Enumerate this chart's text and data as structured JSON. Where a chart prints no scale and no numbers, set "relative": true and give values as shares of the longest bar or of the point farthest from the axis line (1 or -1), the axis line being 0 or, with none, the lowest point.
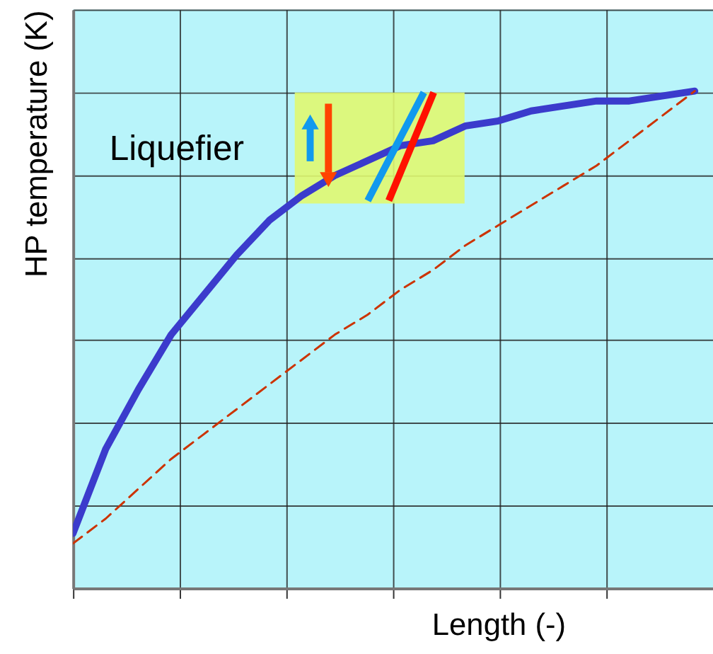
{
  "chart_data": {
    "type": "line",
    "relative": true,
    "xlabel": "Length (-)",
    "ylabel": "HP temperature (K)",
    "categories": [
      null,
      null,
      null,
      null,
      null,
      null,
      null,
      null,
      null,
      null,
      null,
      null,
      null,
      null,
      null,
      null,
      null,
      null,
      null,
      null
    ],
    "series": [
      {
        "color": "#3b3bcc",
        "line_style": "solid",
        "values": [
          0.11,
          0.28,
          0.4,
          0.51,
          0.59,
          0.67,
          0.74,
          0.79,
          0.83,
          0.86,
          0.89,
          0.9,
          0.93,
          0.94,
          0.96,
          0.97,
          0.98,
          0.98,
          0.99,
          1.0
        ]
      },
      {
        "color": "#cc3300",
        "line_style": "dashed",
        "values": [
          0.09,
          0.14,
          0.2,
          0.26,
          0.31,
          0.36,
          0.41,
          0.46,
          0.51,
          0.55,
          0.6,
          0.64,
          0.69,
          0.73,
          0.77,
          0.81,
          0.85,
          0.9,
          0.95,
          1.0
        ]
      }
    ],
    "annotations": [
      "Liquefier"
    ],
    "grid": true,
    "tick_labels": false
  }
}
